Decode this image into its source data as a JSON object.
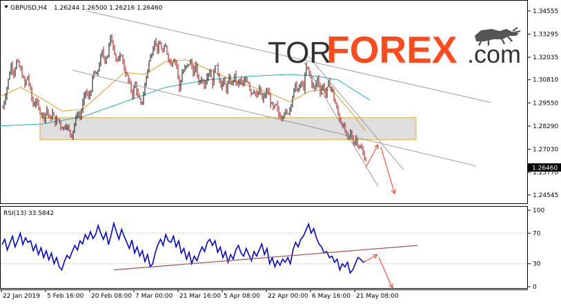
{
  "header": {
    "symbol": "GBPUSD,H4",
    "ohlc": "1.26244 1.26500 1.26216 1.26460"
  },
  "logo": {
    "tor": "TOR",
    "forex": "FOREX",
    "com": ".com"
  },
  "rsi": {
    "label": "RSI(13) 33.5842"
  },
  "current_price_label": "1.26460",
  "colors": {
    "candle": "#b00000",
    "ma_fast": "#d8a020",
    "ma_slow": "#20b0b0",
    "channel": "#9a9a9a",
    "rsi_line": "#0000dd",
    "rsi_trend": "#a05050",
    "arrow": "#ff5040",
    "zone_fill": "#d8d8d8",
    "zone_border": "#e0b040"
  },
  "chart_data": [
    {
      "type": "candlestick",
      "title": "GBPUSD,H4",
      "ylim": [
        1.242,
        1.347
      ],
      "y_ticks": [
        "1.34555",
        "1.33295",
        "1.32035",
        "1.30810",
        "1.29550",
        "1.28290",
        "1.27030",
        "1.25770",
        "1.24545"
      ],
      "x_ticks": [
        "22 Jan 2019",
        "5 Feb 16:00",
        "20 Feb 08:00",
        "7 Mar 00:00",
        "21 Mar 16:00",
        "5 Apr 08:00",
        "22 Apr 00:00",
        "6 May 16:00",
        "21 May 08:00"
      ],
      "price_path": [
        [
          0,
          1.284
        ],
        [
          4,
          1.293
        ],
        [
          8,
          1.3
        ],
        [
          12,
          1.308
        ],
        [
          16,
          1.316
        ],
        [
          20,
          1.312
        ],
        [
          24,
          1.318
        ],
        [
          28,
          1.315
        ],
        [
          32,
          1.311
        ],
        [
          36,
          1.305
        ],
        [
          40,
          1.31
        ],
        [
          44,
          1.302
        ],
        [
          48,
          1.294
        ],
        [
          52,
          1.297
        ],
        [
          56,
          1.292
        ],
        [
          60,
          1.29
        ],
        [
          64,
          1.288
        ],
        [
          68,
          1.292
        ],
        [
          72,
          1.286
        ],
        [
          76,
          1.29
        ],
        [
          80,
          1.285
        ],
        [
          84,
          1.287
        ],
        [
          88,
          1.283
        ],
        [
          92,
          1.282
        ],
        [
          96,
          1.284
        ],
        [
          100,
          1.28
        ],
        [
          104,
          1.278
        ],
        [
          108,
          1.284
        ],
        [
          112,
          1.29
        ],
        [
          116,
          1.288
        ],
        [
          120,
          1.295
        ],
        [
          124,
          1.302
        ],
        [
          128,
          1.298
        ],
        [
          132,
          1.303
        ],
        [
          136,
          1.312
        ],
        [
          140,
          1.31
        ],
        [
          144,
          1.317
        ],
        [
          148,
          1.323
        ],
        [
          152,
          1.319
        ],
        [
          156,
          1.322
        ],
        [
          160,
          1.331
        ],
        [
          164,
          1.327
        ],
        [
          168,
          1.32
        ],
        [
          172,
          1.318
        ],
        [
          176,
          1.322
        ],
        [
          180,
          1.314
        ],
        [
          184,
          1.31
        ],
        [
          188,
          1.305
        ],
        [
          192,
          1.3
        ],
        [
          196,
          1.306
        ],
        [
          200,
          1.299
        ],
        [
          204,
          1.294
        ],
        [
          208,
          1.3
        ],
        [
          212,
          1.31
        ],
        [
          216,
          1.318
        ],
        [
          220,
          1.323
        ],
        [
          224,
          1.33
        ],
        [
          228,
          1.325
        ],
        [
          232,
          1.327
        ],
        [
          236,
          1.323
        ],
        [
          240,
          1.326
        ],
        [
          244,
          1.32
        ],
        [
          248,
          1.317
        ],
        [
          252,
          1.32
        ],
        [
          256,
          1.316
        ],
        [
          260,
          1.303
        ],
        [
          264,
          1.312
        ],
        [
          268,
          1.314
        ],
        [
          272,
          1.316
        ],
        [
          276,
          1.318
        ],
        [
          280,
          1.312
        ],
        [
          284,
          1.315
        ],
        [
          288,
          1.306
        ],
        [
          292,
          1.309
        ],
        [
          296,
          1.305
        ],
        [
          300,
          1.311
        ],
        [
          304,
          1.313
        ],
        [
          308,
          1.306
        ],
        [
          312,
          1.317
        ],
        [
          316,
          1.312
        ],
        [
          320,
          1.305
        ],
        [
          324,
          1.307
        ],
        [
          328,
          1.303
        ],
        [
          332,
          1.308
        ],
        [
          336,
          1.306
        ],
        [
          340,
          1.31
        ],
        [
          344,
          1.305
        ],
        [
          348,
          1.308
        ],
        [
          352,
          1.304
        ],
        [
          356,
          1.309
        ],
        [
          360,
          1.307
        ],
        [
          364,
          1.301
        ],
        [
          368,
          1.303
        ],
        [
          372,
          1.298
        ],
        [
          376,
          1.303
        ],
        [
          380,
          1.297
        ],
        [
          384,
          1.3
        ],
        [
          388,
          1.302
        ],
        [
          392,
          1.296
        ],
        [
          396,
          1.292
        ],
        [
          400,
          1.294
        ],
        [
          404,
          1.289
        ],
        [
          408,
          1.288
        ],
        [
          412,
          1.291
        ],
        [
          416,
          1.289
        ],
        [
          420,
          1.293
        ],
        [
          424,
          1.299
        ],
        [
          428,
          1.305
        ],
        [
          432,
          1.302
        ],
        [
          436,
          1.306
        ],
        [
          440,
          1.304
        ],
        [
          444,
          1.315
        ],
        [
          448,
          1.312
        ],
        [
          452,
          1.306
        ],
        [
          456,
          1.303
        ],
        [
          460,
          1.309
        ],
        [
          464,
          1.302
        ],
        [
          468,
          1.305
        ],
        [
          472,
          1.3
        ],
        [
          476,
          1.306
        ],
        [
          480,
          1.304
        ],
        [
          484,
          1.298
        ],
        [
          488,
          1.292
        ],
        [
          492,
          1.287
        ],
        [
          496,
          1.284
        ],
        [
          500,
          1.28
        ],
        [
          504,
          1.276
        ],
        [
          508,
          1.279
        ],
        [
          512,
          1.274
        ],
        [
          516,
          1.276
        ],
        [
          520,
          1.272
        ],
        [
          524,
          1.27
        ],
        [
          528,
          1.266
        ],
        [
          530,
          1.2646
        ]
      ],
      "ma_fast_path": [
        [
          0,
          1.299
        ],
        [
          30,
          1.304
        ],
        [
          60,
          1.298
        ],
        [
          90,
          1.291
        ],
        [
          120,
          1.292
        ],
        [
          150,
          1.302
        ],
        [
          180,
          1.312
        ],
        [
          210,
          1.311
        ],
        [
          240,
          1.318
        ],
        [
          270,
          1.319
        ],
        [
          300,
          1.314
        ],
        [
          330,
          1.309
        ],
        [
          360,
          1.305
        ],
        [
          390,
          1.301
        ],
        [
          420,
          1.296
        ],
        [
          450,
          1.302
        ],
        [
          480,
          1.303
        ],
        [
          510,
          1.29
        ],
        [
          530,
          1.28
        ]
      ],
      "ma_slow_path": [
        [
          0,
          1.283
        ],
        [
          60,
          1.284
        ],
        [
          120,
          1.288
        ],
        [
          180,
          1.296
        ],
        [
          240,
          1.304
        ],
        [
          300,
          1.308
        ],
        [
          360,
          1.31
        ],
        [
          420,
          1.311
        ],
        [
          460,
          1.31
        ],
        [
          490,
          1.308
        ],
        [
          515,
          1.302
        ],
        [
          536,
          1.297
        ]
      ],
      "trendlines": [
        [
          [
            126,
            1.3455
          ],
          [
            712,
            1.2957
          ]
        ],
        [
          [
            105,
            1.3133
          ],
          [
            690,
            1.2612
          ]
        ],
        [
          [
            447,
            1.321
          ],
          [
            585,
            1.259
          ]
        ],
        [
          [
            441,
            1.3175
          ],
          [
            548,
            1.25
          ]
        ]
      ],
      "support_zone": {
        "x": [
          58,
          603
        ],
        "y": [
          1.2755,
          1.2875
        ]
      },
      "arrows": [
        [
          [
            530,
            1.2605
          ],
          [
            548,
            1.2728
          ]
        ],
        [
          [
            552,
            1.2715
          ],
          [
            572,
            1.246
          ]
        ]
      ]
    },
    {
      "type": "line",
      "title": "RSI(13) 33.5842",
      "ylim": [
        0,
        100
      ],
      "y_ticks": [
        "100",
        "70",
        "30",
        "0"
      ],
      "values": [
        55,
        62,
        48,
        57,
        66,
        52,
        60,
        70,
        55,
        64,
        58,
        60,
        47,
        55,
        42,
        51,
        38,
        47,
        35,
        44,
        30,
        38,
        26,
        22,
        33,
        41,
        37,
        46,
        54,
        48,
        60,
        56,
        68,
        62,
        72,
        63,
        68,
        80,
        70,
        62,
        71,
        55,
        68,
        83,
        72,
        62,
        75,
        66,
        58,
        50,
        61,
        44,
        52,
        40,
        47,
        33,
        42,
        26,
        30,
        45,
        55,
        62,
        54,
        68,
        60,
        58,
        66,
        52,
        60,
        44,
        50,
        36,
        45,
        30,
        40,
        34,
        44,
        52,
        46,
        58,
        62,
        54,
        60,
        45,
        52,
        38,
        46,
        32,
        42,
        36,
        48,
        54,
        44,
        40,
        50,
        42,
        34,
        46,
        40,
        48,
        56,
        42,
        50,
        30,
        38,
        26,
        34,
        28,
        36,
        32,
        38,
        30,
        48,
        58,
        52,
        62,
        66,
        74,
        82,
        70,
        76,
        64,
        56,
        52,
        44,
        46,
        38,
        40,
        32,
        36,
        22,
        30,
        26,
        32,
        18,
        22,
        30,
        38,
        36,
        32,
        33.5842
      ],
      "trendline": [
        [
          165,
          22
        ],
        [
          605,
          54
        ]
      ],
      "arrows": [
        [
          [
            527,
            32
          ],
          [
            547,
            42
          ]
        ],
        [
          [
            549,
            38
          ],
          [
            569,
            -2
          ]
        ]
      ]
    }
  ]
}
